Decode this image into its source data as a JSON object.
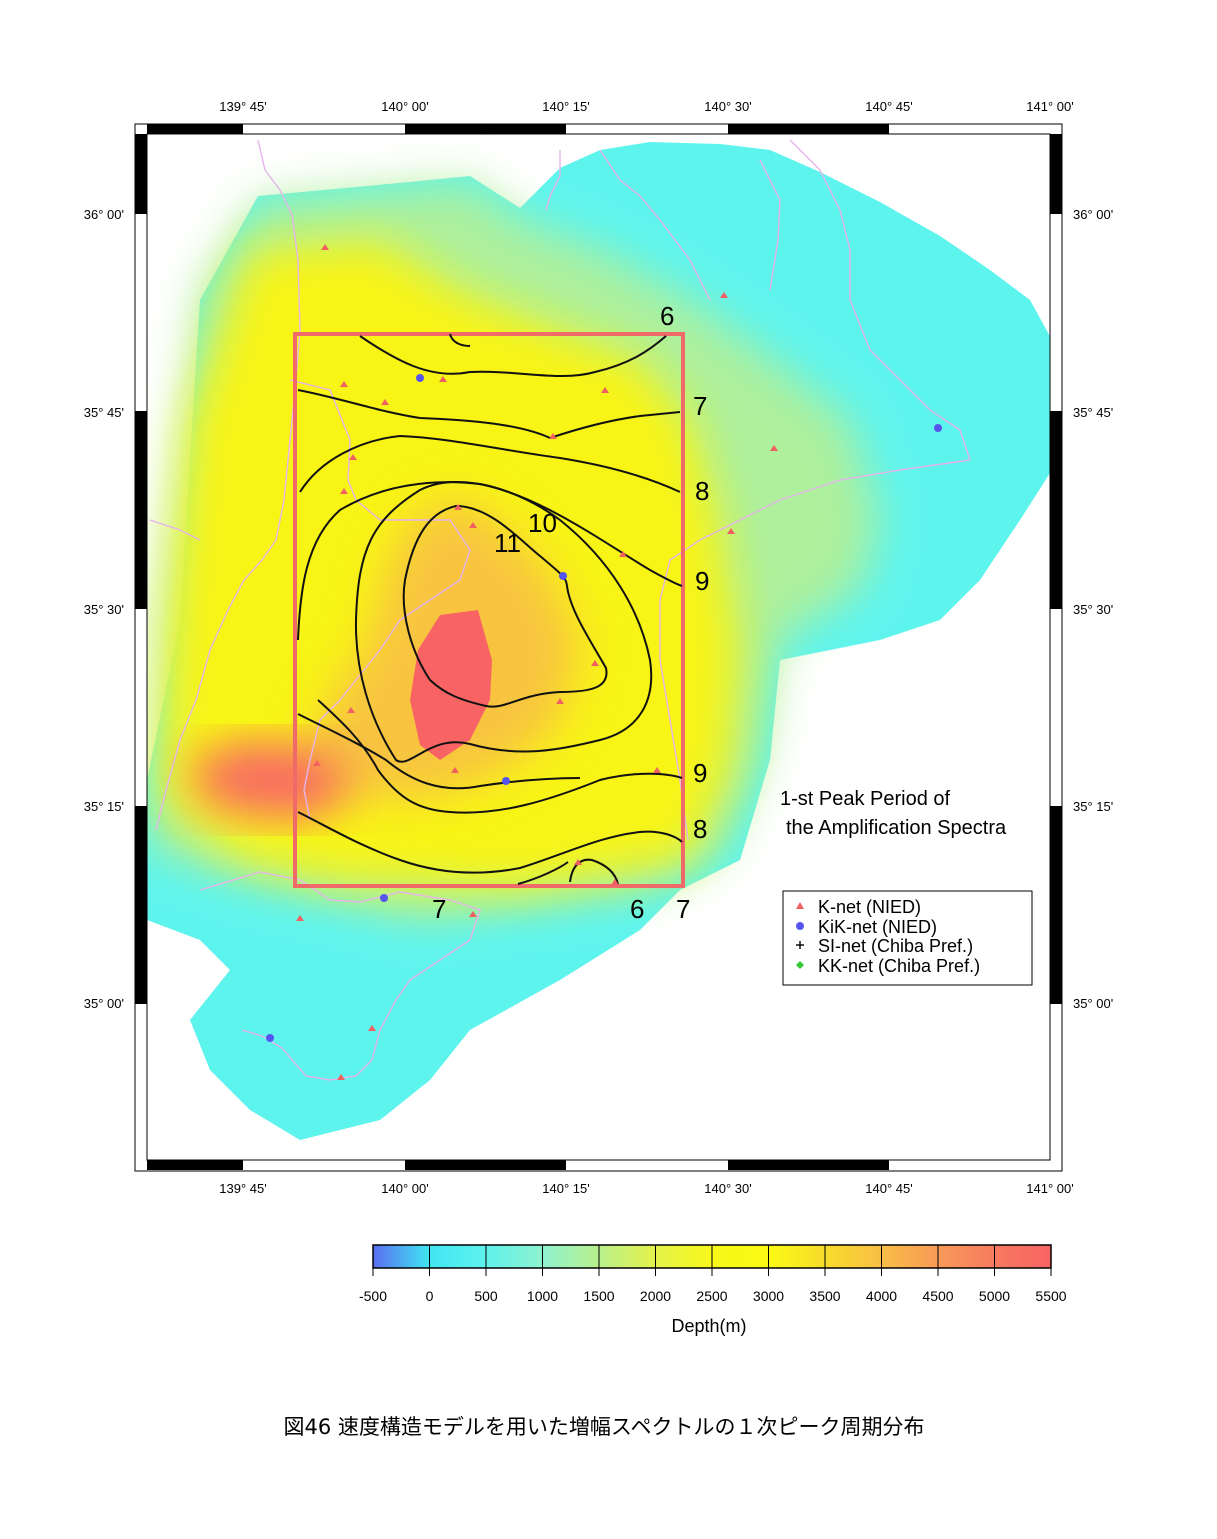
{
  "lon_ticks": [
    "139° 45'",
    "140° 00'",
    "140° 15'",
    "140° 30'",
    "140° 45'",
    "141° 00'"
  ],
  "lat_ticks": [
    "36° 00'",
    "35° 45'",
    "35° 30'",
    "35° 15'",
    "35° 00'"
  ],
  "map_annotation": [
    "1-st Peak Period of",
    "the Amplification Spectra"
  ],
  "legend": [
    {
      "symbol": "triangle",
      "color": "#f06060",
      "label": "K-net (NIED)"
    },
    {
      "symbol": "circle",
      "color": "#5555ee",
      "label": "KiK-net (NIED)"
    },
    {
      "symbol": "plus",
      "color": "#000000",
      "label": "SI-net (Chiba Pref.)"
    },
    {
      "symbol": "diamond",
      "color": "#33cc33",
      "label": "KK-net (Chiba Pref.)"
    }
  ],
  "contour_levels": [
    "6",
    "7",
    "8",
    "9",
    "10",
    "11",
    "9",
    "8",
    "7",
    "6",
    "7"
  ],
  "colorbar": {
    "ticks": [
      "-500",
      "0",
      "500",
      "1000",
      "1500",
      "2000",
      "2500",
      "3000",
      "3500",
      "4000",
      "4500",
      "5000",
      "5500"
    ],
    "label": "Depth(m)",
    "colors": [
      "#5a6ef0",
      "#40e6f2",
      "#5ff2ec",
      "#8ff2d0",
      "#b9f08c",
      "#e4f24a",
      "#f8f81a",
      "#fafa14",
      "#f8dc2c",
      "#f8be46",
      "#f89a58",
      "#f87a60",
      "#f86464"
    ]
  },
  "region_box_color": "#f06a6a",
  "caption": "図46  速度構造モデルを用いた増幅スペクトルの１次ピーク周期分布"
}
